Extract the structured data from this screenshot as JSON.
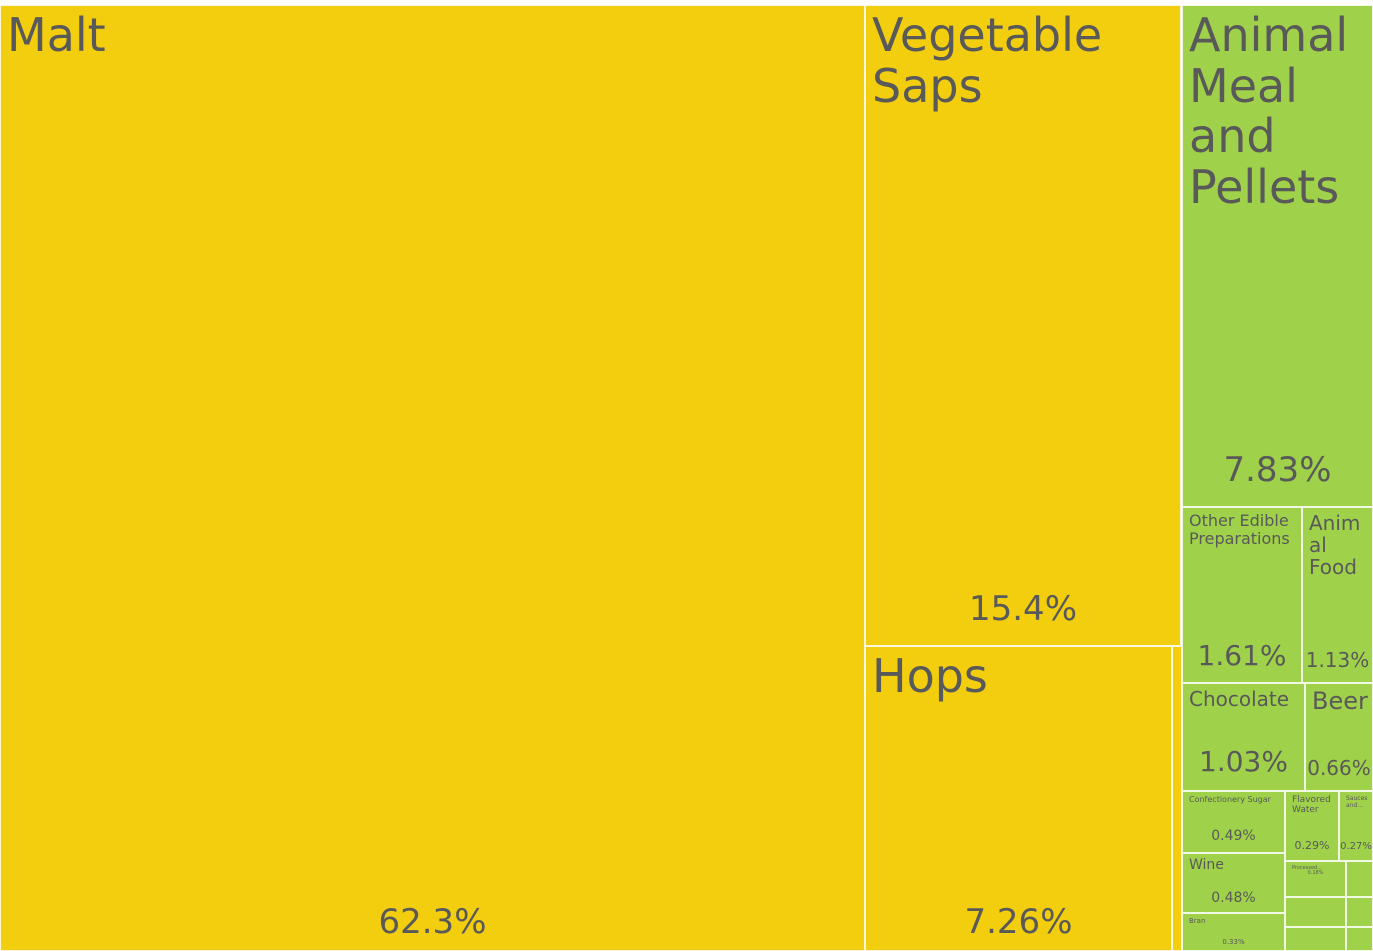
{
  "chart_data": {
    "type": "treemap",
    "unit": "%",
    "groups": [
      {
        "color": "#f2ce0f",
        "items": [
          {
            "name": "Malt",
            "value": 62.3,
            "label": "62.3%"
          },
          {
            "name": "Vegetable Saps",
            "value": 15.4,
            "label": "15.4%"
          },
          {
            "name": "Hops",
            "value": 7.26,
            "label": "7.26%"
          }
        ]
      },
      {
        "color": "#9fd24a",
        "items": [
          {
            "name": "Animal Meal and Pellets",
            "value": 7.83,
            "label": "7.83%"
          },
          {
            "name": "Other Edible Preparations",
            "value": 1.61,
            "label": "1.61%"
          },
          {
            "name": "Animal Food",
            "value": 1.13,
            "label": "1.13%"
          },
          {
            "name": "Chocolate",
            "value": 1.03,
            "label": "1.03%"
          },
          {
            "name": "Beer",
            "value": 0.66,
            "label": "0.66%"
          },
          {
            "name": "Confectionery Sugar",
            "value": 0.49,
            "label": "0.49%"
          },
          {
            "name": "Wine",
            "value": 0.48,
            "label": "0.48%"
          },
          {
            "name": "Flavored Water",
            "value": 0.29,
            "label": "0.29%"
          },
          {
            "name": "Sauces and...",
            "value": 0.27,
            "label": "0.27%"
          },
          {
            "name": "Processed...",
            "value": 0.18,
            "label": "0.18%"
          },
          {
            "name": "Bran",
            "value": 0.33,
            "label": "0.33%"
          }
        ]
      }
    ]
  }
}
